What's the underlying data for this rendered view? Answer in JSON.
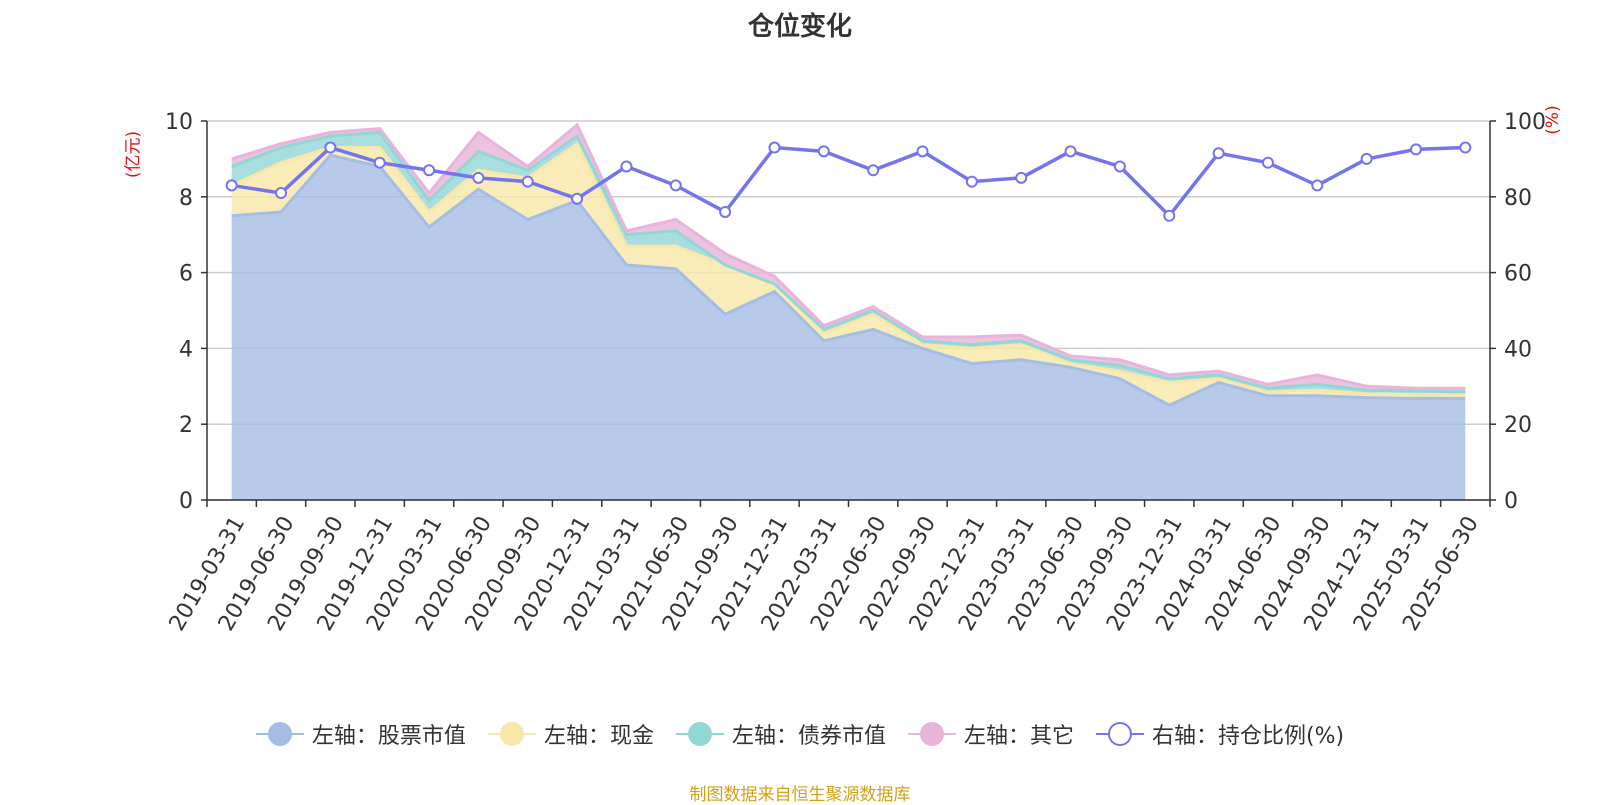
{
  "title": "仓位变化",
  "left_unit": "(亿元)",
  "right_unit": "(%)",
  "source_note": "制图数据来自恒生聚源数据库",
  "legend": [
    {
      "label": "左轴：股票市值",
      "color": "#a5bde5",
      "marker": "filled"
    },
    {
      "label": "左轴：现金",
      "color": "#f8e7a8",
      "marker": "filled"
    },
    {
      "label": "左轴：债券市值",
      "color": "#93d6d6",
      "marker": "filled"
    },
    {
      "label": "左轴：其它",
      "color": "#e8b4da",
      "marker": "filled"
    },
    {
      "label": "右轴：持仓比例(%)",
      "color": "#7474ee",
      "marker": "hollow"
    }
  ],
  "chart_data": {
    "type": "area",
    "title": "仓位变化",
    "categories": [
      "2019-03-31",
      "2019-06-30",
      "2019-09-30",
      "2019-12-31",
      "2020-03-31",
      "2020-06-30",
      "2020-09-30",
      "2020-12-31",
      "2021-03-31",
      "2021-06-30",
      "2021-09-30",
      "2021-12-31",
      "2022-03-31",
      "2022-06-30",
      "2022-09-30",
      "2022-12-31",
      "2023-03-31",
      "2023-06-30",
      "2023-09-30",
      "2023-12-31",
      "2024-03-31",
      "2024-06-30",
      "2024-09-30",
      "2024-12-31",
      "2025-03-31",
      "2025-06-30"
    ],
    "left_axis": {
      "ylim": [
        0,
        10
      ],
      "ticks": [
        "0",
        "2",
        "4",
        "6",
        "8",
        "10"
      ]
    },
    "right_axis": {
      "ylim": [
        0,
        100
      ],
      "ticks": [
        "0",
        "20",
        "40",
        "60",
        "80",
        "100"
      ]
    },
    "grid": true,
    "legend_position": "bottom",
    "stacked": true,
    "series": [
      {
        "name": "左轴：股票市值",
        "axis": "left",
        "color": "#a5bde5",
        "values": [
          7.5,
          7.6,
          9.1,
          8.8,
          7.2,
          8.2,
          7.4,
          7.9,
          6.2,
          6.1,
          4.9,
          5.5,
          4.2,
          4.5,
          4.0,
          3.6,
          3.7,
          3.5,
          3.2,
          2.5,
          3.1,
          2.75,
          2.75,
          2.7,
          2.68,
          2.68
        ]
      },
      {
        "name": "左轴：现金",
        "axis": "left",
        "color": "#f8e7a8",
        "values": [
          0.8,
          1.3,
          0.2,
          0.5,
          0.4,
          0.5,
          1.1,
          1.5,
          0.5,
          0.6,
          1.3,
          0.2,
          0.2,
          0.4,
          0.1,
          0.4,
          0.4,
          0.1,
          0.2,
          0.6,
          0.1,
          0.1,
          0.15,
          0.1,
          0.1,
          0.1
        ]
      },
      {
        "name": "左轴：债券市值",
        "axis": "left",
        "color": "#93d6d6",
        "values": [
          0.5,
          0.4,
          0.3,
          0.4,
          0.3,
          0.5,
          0.2,
          0.2,
          0.3,
          0.4,
          0.0,
          0.0,
          0.1,
          0.1,
          0.1,
          0.1,
          0.1,
          0.1,
          0.15,
          0.1,
          0.1,
          0.1,
          0.15,
          0.1,
          0.1,
          0.07
        ]
      },
      {
        "name": "左轴：其它",
        "axis": "left",
        "color": "#e8b4da",
        "values": [
          0.2,
          0.1,
          0.1,
          0.1,
          0.2,
          0.5,
          0.1,
          0.3,
          0.1,
          0.3,
          0.3,
          0.2,
          0.1,
          0.1,
          0.1,
          0.2,
          0.15,
          0.1,
          0.15,
          0.1,
          0.1,
          0.1,
          0.25,
          0.1,
          0.07,
          0.1
        ]
      },
      {
        "name": "右轴：持仓比例(%)",
        "axis": "right",
        "color": "#7474ee",
        "type": "line",
        "values": [
          83,
          81,
          93,
          89,
          87,
          85,
          84,
          79.5,
          88,
          83,
          76,
          93,
          92,
          87,
          92,
          84,
          85,
          92,
          88,
          75,
          91.5,
          89,
          83,
          90,
          92.5,
          93
        ]
      }
    ]
  }
}
